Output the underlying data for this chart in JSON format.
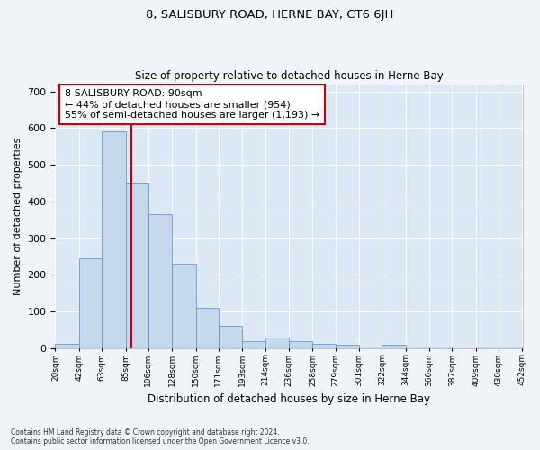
{
  "title": "8, SALISBURY ROAD, HERNE BAY, CT6 6JH",
  "subtitle": "Size of property relative to detached houses in Herne Bay",
  "xlabel": "Distribution of detached houses by size in Herne Bay",
  "ylabel": "Number of detached properties",
  "bar_color": "#c5d8ec",
  "bar_edge_color": "#6699cc",
  "background_color": "#dce8f5",
  "grid_color": "#ffffff",
  "vline_x": 90,
  "vline_color": "#cc0000",
  "annotation_text": "8 SALISBURY ROAD: 90sqm\n← 44% of detached houses are smaller (954)\n55% of semi-detached houses are larger (1,193) →",
  "annotation_box_color": "#ffffff",
  "annotation_box_edge": "#cc0000",
  "bin_edges": [
    20,
    42,
    63,
    85,
    106,
    128,
    150,
    171,
    193,
    214,
    236,
    258,
    279,
    301,
    322,
    344,
    366,
    387,
    409,
    430,
    452
  ],
  "bar_heights": [
    12,
    245,
    590,
    450,
    365,
    230,
    110,
    60,
    20,
    30,
    18,
    12,
    8,
    4,
    8,
    4,
    4,
    0,
    4,
    4
  ],
  "ylim": [
    0,
    720
  ],
  "yticks": [
    0,
    100,
    200,
    300,
    400,
    500,
    600,
    700
  ],
  "footnote": "Contains HM Land Registry data © Crown copyright and database right 2024.\nContains public sector information licensed under the Open Government Licence v3.0."
}
